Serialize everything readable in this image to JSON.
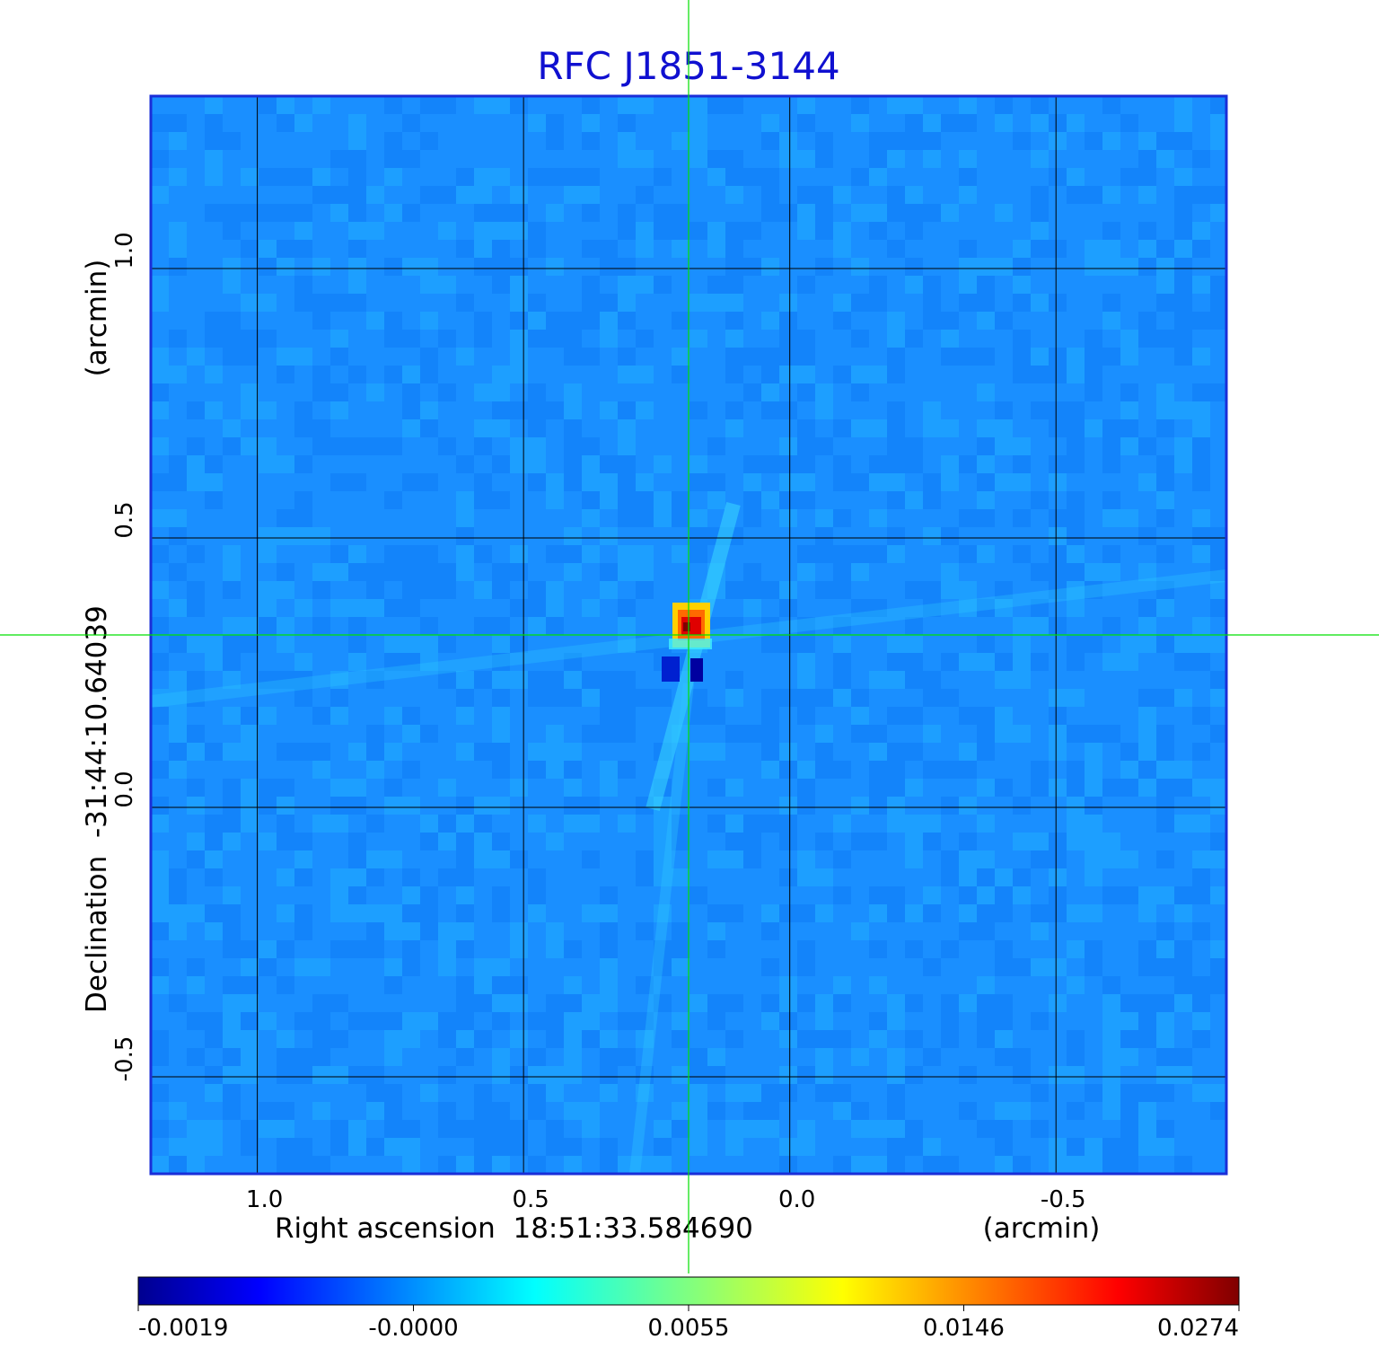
{
  "chart_data": {
    "type": "heatmap",
    "title": "RFC J1851-3144",
    "x_axis": {
      "label": "Right ascension  18:51:33.584690",
      "unit_label": "(arcmin)",
      "range": [
        1.2,
        -0.82
      ],
      "ticks": [
        1.0,
        0.5,
        0.0,
        -0.5
      ],
      "tick_labels": [
        "1.0",
        "0.5",
        "0.0",
        "-0.5"
      ]
    },
    "y_axis": {
      "label": "Declination  -31:44:10.64039",
      "unit_label": "(arcmin)",
      "range": [
        -0.68,
        1.32
      ],
      "ticks": [
        -0.5,
        0.0,
        0.5,
        1.0
      ],
      "tick_labels": [
        "-0.5",
        "0.0",
        "0.5",
        "1.0"
      ]
    },
    "grid": true,
    "crosshair": {
      "x": 0.19,
      "y": 0.32,
      "color": "#00e000"
    },
    "source_peak": {
      "x": 0.19,
      "y": 0.33,
      "value": 0.0274
    },
    "colormap": "jet",
    "colorbar": {
      "ticks": [
        -0.0019,
        -0.0,
        0.0055,
        0.0146,
        0.0274
      ],
      "tick_labels": [
        "-0.0019",
        "-0.0000",
        "0.0055",
        "0.0146",
        "0.0274"
      ]
    },
    "colors": {
      "title": "#1010d0",
      "frame": "#1a2ed8",
      "background_map": "#1a8fff"
    }
  }
}
